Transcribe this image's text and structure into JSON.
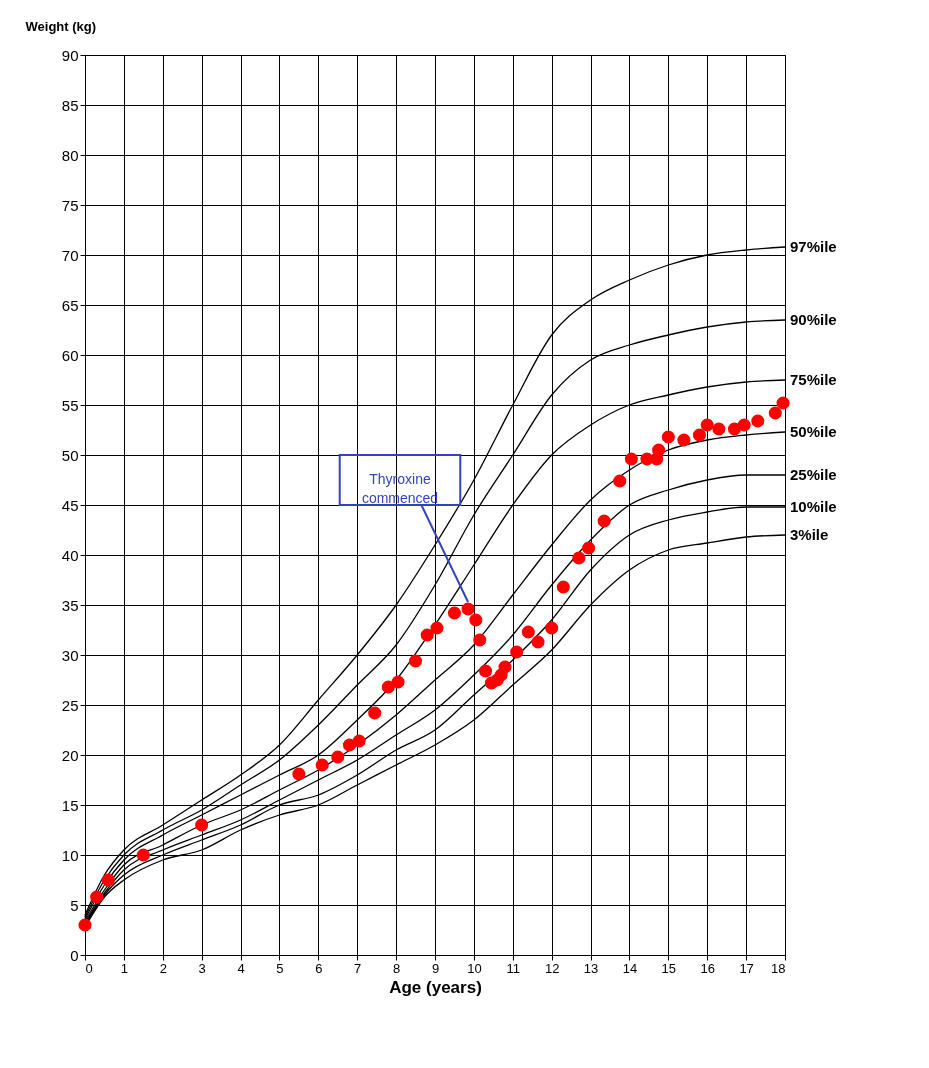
{
  "chart_data": {
    "type": "line",
    "xlabel": "Age (years)",
    "ylabel": "Weight (kg)",
    "xlim": [
      0,
      18
    ],
    "ylim": [
      0,
      90
    ],
    "xticks": [
      0,
      1,
      2,
      3,
      4,
      5,
      6,
      7,
      8,
      9,
      10,
      11,
      12,
      13,
      14,
      15,
      16,
      17,
      18
    ],
    "yticks": [
      0,
      5,
      10,
      15,
      20,
      25,
      30,
      35,
      40,
      45,
      50,
      55,
      60,
      65,
      70,
      75,
      80,
      85,
      90
    ],
    "grid": true,
    "legend": false,
    "marker": "circle",
    "x": [
      0,
      0.5,
      1,
      2,
      3,
      4,
      5,
      6,
      7,
      8,
      9,
      10,
      11,
      12,
      13,
      14,
      15,
      16,
      17,
      18
    ],
    "series": [
      {
        "name": "97%ile",
        "color": "#000000",
        "marker": "none",
        "values": [
          4,
          8,
          10.5,
          13,
          15.5,
          18,
          21,
          25.5,
          30,
          35,
          41,
          47.5,
          55,
          62,
          65.5,
          67.5,
          69,
          70,
          70.5,
          70.8
        ]
      },
      {
        "name": "90%ile",
        "color": "#000000",
        "marker": "none",
        "values": [
          3.8,
          7.5,
          10,
          12.5,
          14.5,
          17,
          19.5,
          23,
          27,
          31,
          37,
          44,
          50,
          56,
          59.5,
          61,
          62,
          62.8,
          63.3,
          63.5
        ]
      },
      {
        "name": "75%ile",
        "color": "#000000",
        "marker": "none",
        "values": [
          3.6,
          7,
          9.5,
          12,
          14,
          16,
          18,
          20,
          23.5,
          27.5,
          33,
          39,
          45,
          50,
          53,
          55,
          56,
          56.8,
          57.3,
          57.5
        ]
      },
      {
        "name": "50%ile",
        "color": "#000000",
        "marker": "none",
        "values": [
          3.4,
          6.5,
          9,
          11,
          13,
          14.5,
          16.5,
          18.5,
          21,
          24,
          27.5,
          31,
          36,
          41,
          45.5,
          48.5,
          50.5,
          51.5,
          52,
          52.3
        ]
      },
      {
        "name": "25%ile",
        "color": "#000000",
        "marker": "none",
        "values": [
          3.2,
          6.2,
          8.5,
          10.5,
          12,
          13.5,
          15.5,
          17.5,
          19.5,
          22,
          24.5,
          28,
          32,
          37,
          41.5,
          45,
          46.5,
          47.5,
          48,
          48
        ]
      },
      {
        "name": "10%ile",
        "color": "#000000",
        "marker": "none",
        "values": [
          3,
          6,
          8,
          10,
          11.5,
          13,
          15,
          16,
          18,
          20.5,
          22.5,
          26,
          29.5,
          33.5,
          38.5,
          42,
          43.5,
          44.3,
          44.8,
          44.8
        ]
      },
      {
        "name": "3%ile",
        "color": "#000000",
        "marker": "none",
        "values": [
          2.8,
          5.8,
          7.5,
          9.5,
          10.5,
          12.5,
          14,
          15,
          17,
          19,
          21,
          23.5,
          27,
          30.5,
          35,
          38.5,
          40.5,
          41.2,
          41.8,
          42
        ]
      },
      {
        "type": "scatter",
        "color": "#ff0000",
        "x": [
          0,
          0.3,
          0.6,
          1.5,
          3,
          5.5,
          6.1,
          6.5,
          6.8,
          7.05,
          7.45,
          7.8,
          8.05,
          8.5,
          8.8,
          9.05,
          9.5,
          9.85,
          10.05,
          10.15,
          10.3,
          10.45,
          10.6,
          10.7,
          10.8,
          11.1,
          11.4,
          11.65,
          12,
          12.3,
          12.7,
          12.95,
          13.35,
          13.75,
          14.05,
          14.45,
          14.7,
          14.75,
          15,
          15.4,
          15.8,
          16,
          16.3,
          16.7,
          16.95,
          17.3,
          17.75,
          17.95
        ],
        "values": [
          3,
          5.8,
          7.5,
          10,
          13,
          18.1,
          19,
          19.8,
          21,
          21.4,
          24.2,
          26.8,
          27.3,
          29.4,
          32,
          32.7,
          34.2,
          34.6,
          33.5,
          31.5,
          28.4,
          27.2,
          27.5,
          28,
          28.8,
          30.3,
          32.3,
          31.3,
          32.7,
          36.8,
          39.7,
          40.7,
          43.4,
          47.4,
          49.6,
          49.6,
          49.6,
          50.5,
          51.8,
          51.5,
          52,
          53,
          52.6,
          52.6,
          53,
          53.4,
          54.2,
          55.2
        ]
      }
    ],
    "annotations": [
      {
        "text": "Thyroxine commenced",
        "x": 9.85,
        "y": 34.6
      }
    ]
  }
}
